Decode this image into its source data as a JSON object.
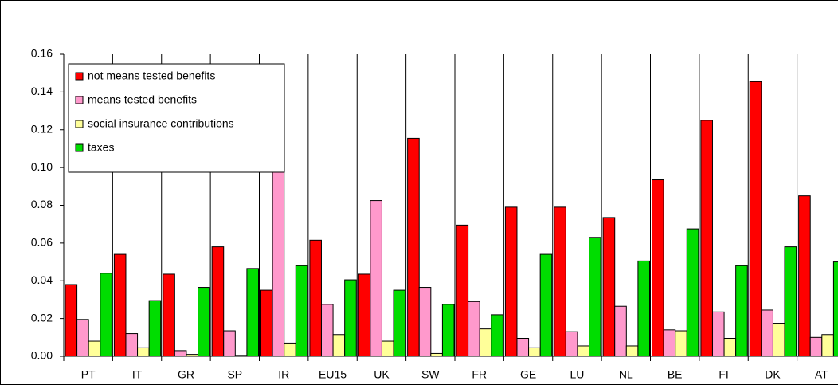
{
  "chart_data": {
    "type": "bar",
    "categories": [
      "PT",
      "IT",
      "GR",
      "SP",
      "IR",
      "EU15",
      "UK",
      "SW",
      "FR",
      "GE",
      "LU",
      "NL",
      "BE",
      "FI",
      "DK",
      "AT"
    ],
    "series": [
      {
        "name": "not means tested benefits",
        "color": "#ff0000",
        "values": [
          0.038,
          0.054,
          0.0435,
          0.058,
          0.035,
          0.0615,
          0.0435,
          0.1155,
          0.0695,
          0.079,
          0.079,
          0.0735,
          0.0935,
          0.125,
          0.1455,
          0.085
        ]
      },
      {
        "name": "means tested benefits",
        "color": "#ff99cc",
        "values": [
          0.0195,
          0.012,
          0.003,
          0.0135,
          0.0995,
          0.0275,
          0.0825,
          0.0365,
          0.029,
          0.0095,
          0.013,
          0.0265,
          0.014,
          0.0235,
          0.0245,
          0.01
        ]
      },
      {
        "name": "social insurance contributions",
        "color": "#ffff99",
        "values": [
          0.008,
          0.0045,
          0.001,
          0.0005,
          0.007,
          0.0115,
          0.008,
          0.0015,
          0.0145,
          0.0045,
          0.0055,
          0.0055,
          0.0135,
          0.0095,
          0.0175,
          0.0115
        ]
      },
      {
        "name": "taxes",
        "color": "#00dd00",
        "values": [
          0.044,
          0.0295,
          0.0365,
          0.0465,
          0.048,
          0.0405,
          0.035,
          0.0275,
          0.022,
          0.054,
          0.063,
          0.0505,
          0.0675,
          0.048,
          0.058,
          0.05
        ]
      }
    ],
    "ylim": [
      0,
      0.16
    ],
    "yticks": [
      {
        "value": 0,
        "label": "0.00"
      },
      {
        "value": 0.02,
        "label": "0.02"
      },
      {
        "value": 0.04,
        "label": "0.04"
      },
      {
        "value": 0.06,
        "label": "0.06"
      },
      {
        "value": 0.08,
        "label": "0.08"
      },
      {
        "value": 0.1,
        "label": "0.10"
      },
      {
        "value": 0.12,
        "label": "0.12"
      },
      {
        "value": 0.14,
        "label": "0.14"
      },
      {
        "value": 0.16,
        "label": "0.16"
      }
    ],
    "grid": "x",
    "legend": "upper left"
  }
}
